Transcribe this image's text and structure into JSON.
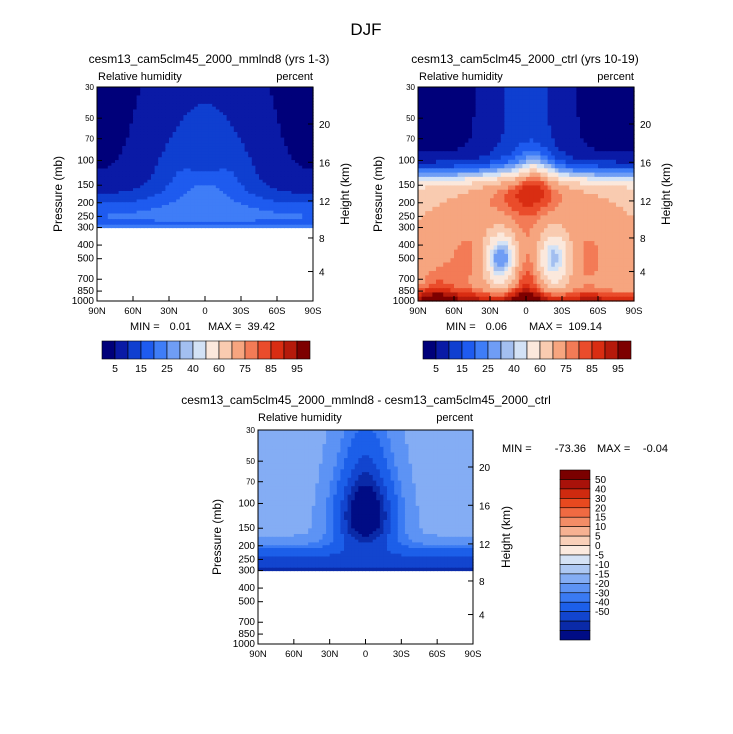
{
  "figure": {
    "title": "DJF"
  },
  "palettes": {
    "abs": [
      "#00007a",
      "#0a1aa6",
      "#0f3fd0",
      "#1e5bef",
      "#3f7df7",
      "#6f9df5",
      "#a3bff0",
      "#d3e2f6",
      "#fbe8dc",
      "#f9cbb0",
      "#f6a57f",
      "#f37b56",
      "#ea4c2b",
      "#d92d12",
      "#b51a0b",
      "#7d0000"
    ],
    "diff": [
      "#000c85",
      "#0a2aa8",
      "#1245cf",
      "#1c5fe9",
      "#3a7af3",
      "#5d93f4",
      "#84adf4",
      "#adc8f3",
      "#d4e2f5",
      "#fbeadf",
      "#f9d0b9",
      "#f6b192",
      "#f38c66",
      "#f06a42",
      "#e8491f",
      "#cf2a0f",
      "#a9120a",
      "#7a0000"
    ]
  },
  "chart_data": [
    {
      "id": "panel-a",
      "type": "heatmap",
      "title": "cesm13_cam5clm45_2000_mmlnd8 (yrs 1-3)",
      "left_label": "Relative humidity",
      "right_label": "percent",
      "ylabel": "Pressure (mb)",
      "y2label": "Height (km)",
      "xlim": [
        90,
        -90
      ],
      "ylim": [
        1000,
        30
      ],
      "x_ticks": [
        {
          "v": 90,
          "label": "90N"
        },
        {
          "v": 60,
          "label": "60N"
        },
        {
          "v": 30,
          "label": "30N"
        },
        {
          "v": 0,
          "label": "0"
        },
        {
          "v": -30,
          "label": "30S"
        },
        {
          "v": -60,
          "label": "60S"
        },
        {
          "v": -90,
          "label": "90S"
        }
      ],
      "y_ticks": [
        {
          "p": 30,
          "label": "30"
        },
        {
          "p": 50,
          "label": "50"
        },
        {
          "p": 70,
          "label": "70"
        },
        {
          "p": 100,
          "label": "100"
        },
        {
          "p": 150,
          "label": "150"
        },
        {
          "p": 200,
          "label": "200"
        },
        {
          "p": 250,
          "label": "250"
        },
        {
          "p": 300,
          "label": "300"
        },
        {
          "p": 400,
          "label": "400"
        },
        {
          "p": 500,
          "label": "500"
        },
        {
          "p": 700,
          "label": "700"
        },
        {
          "p": 850,
          "label": "850"
        },
        {
          "p": 1000,
          "label": "1000"
        }
      ],
      "height_ticks": [
        {
          "p": 55,
          "label": "20"
        },
        {
          "p": 103,
          "label": "16"
        },
        {
          "p": 194,
          "label": "12"
        },
        {
          "p": 356,
          "label": "8"
        },
        {
          "p": 617,
          "label": "4"
        }
      ],
      "stats": {
        "min_label": "MIN =",
        "min": "0.01",
        "max_label": "MAX =",
        "max": "39.42"
      },
      "levels": [
        5,
        10,
        15,
        20,
        25,
        30,
        35,
        40,
        50,
        60,
        70,
        75,
        80,
        85,
        90,
        95
      ],
      "colorbar_labels": [
        "5",
        "15",
        "25",
        "40",
        "60",
        "75",
        "85",
        "95"
      ],
      "colorbar_orientation": "horizontal",
      "palette": "abs",
      "field": "pA",
      "p_cutoff": 300
    },
    {
      "id": "panel-b",
      "type": "heatmap",
      "title": "cesm13_cam5clm45_2000_ctrl (yrs 10-19)",
      "left_label": "Relative humidity",
      "right_label": "percent",
      "ylabel": "Pressure (mb)",
      "y2label": "Height (km)",
      "xlim": [
        90,
        -90
      ],
      "ylim": [
        1000,
        30
      ],
      "x_ticks": [
        {
          "v": 90,
          "label": "90N"
        },
        {
          "v": 60,
          "label": "60N"
        },
        {
          "v": 30,
          "label": "30N"
        },
        {
          "v": 0,
          "label": "0"
        },
        {
          "v": -30,
          "label": "30S"
        },
        {
          "v": -60,
          "label": "60S"
        },
        {
          "v": -90,
          "label": "90S"
        }
      ],
      "y_ticks": [
        {
          "p": 30,
          "label": "30"
        },
        {
          "p": 50,
          "label": "50"
        },
        {
          "p": 70,
          "label": "70"
        },
        {
          "p": 100,
          "label": "100"
        },
        {
          "p": 150,
          "label": "150"
        },
        {
          "p": 200,
          "label": "200"
        },
        {
          "p": 250,
          "label": "250"
        },
        {
          "p": 300,
          "label": "300"
        },
        {
          "p": 400,
          "label": "400"
        },
        {
          "p": 500,
          "label": "500"
        },
        {
          "p": 700,
          "label": "700"
        },
        {
          "p": 850,
          "label": "850"
        },
        {
          "p": 1000,
          "label": "1000"
        }
      ],
      "height_ticks": [
        {
          "p": 55,
          "label": "20"
        },
        {
          "p": 103,
          "label": "16"
        },
        {
          "p": 194,
          "label": "12"
        },
        {
          "p": 356,
          "label": "8"
        },
        {
          "p": 617,
          "label": "4"
        }
      ],
      "stats": {
        "min_label": "MIN =",
        "min": "0.06",
        "max_label": "MAX =",
        "max": "109.14"
      },
      "levels": [
        5,
        10,
        15,
        20,
        25,
        30,
        35,
        40,
        50,
        60,
        70,
        75,
        80,
        85,
        90,
        95
      ],
      "colorbar_labels": [
        "5",
        "15",
        "25",
        "40",
        "60",
        "75",
        "85",
        "95"
      ],
      "colorbar_orientation": "horizontal",
      "palette": "abs",
      "field": "pB",
      "p_cutoff": 1000
    },
    {
      "id": "panel-c",
      "type": "heatmap",
      "title": "cesm13_cam5clm45_2000_mmlnd8 - cesm13_cam5clm45_2000_ctrl",
      "left_label": "Relative humidity",
      "right_label": "percent",
      "ylabel": "Pressure (mb)",
      "y2label": "Height (km)",
      "xlim": [
        90,
        -90
      ],
      "ylim": [
        1000,
        30
      ],
      "x_ticks": [
        {
          "v": 90,
          "label": "90N"
        },
        {
          "v": 60,
          "label": "60N"
        },
        {
          "v": 30,
          "label": "30N"
        },
        {
          "v": 0,
          "label": "0"
        },
        {
          "v": -30,
          "label": "30S"
        },
        {
          "v": -60,
          "label": "60S"
        },
        {
          "v": -90,
          "label": "90S"
        }
      ],
      "y_ticks": [
        {
          "p": 30,
          "label": "30"
        },
        {
          "p": 50,
          "label": "50"
        },
        {
          "p": 70,
          "label": "70"
        },
        {
          "p": 100,
          "label": "100"
        },
        {
          "p": 150,
          "label": "150"
        },
        {
          "p": 200,
          "label": "200"
        },
        {
          "p": 250,
          "label": "250"
        },
        {
          "p": 300,
          "label": "300"
        },
        {
          "p": 400,
          "label": "400"
        },
        {
          "p": 500,
          "label": "500"
        },
        {
          "p": 700,
          "label": "700"
        },
        {
          "p": 850,
          "label": "850"
        },
        {
          "p": 1000,
          "label": "1000"
        }
      ],
      "height_ticks": [
        {
          "p": 55,
          "label": "20"
        },
        {
          "p": 103,
          "label": "16"
        },
        {
          "p": 194,
          "label": "12"
        },
        {
          "p": 356,
          "label": "8"
        },
        {
          "p": 617,
          "label": "4"
        }
      ],
      "stats": {
        "min_label": "MIN =",
        "min": "-73.36",
        "max_label": "MAX =",
        "max": "-0.04"
      },
      "levels": [
        -50,
        -40,
        -30,
        -20,
        -15,
        -10,
        -5,
        0,
        5,
        10,
        15,
        20,
        30,
        40,
        50
      ],
      "colorbar_labels": [
        "50",
        "40",
        "30",
        "20",
        "15",
        "10",
        "5",
        "0",
        "-5",
        "-10",
        "-15",
        "-20",
        "-30",
        "-40",
        "-50"
      ],
      "colorbar_orientation": "vertical",
      "palette": "diff",
      "field": "pC",
      "p_cutoff": 300
    }
  ]
}
